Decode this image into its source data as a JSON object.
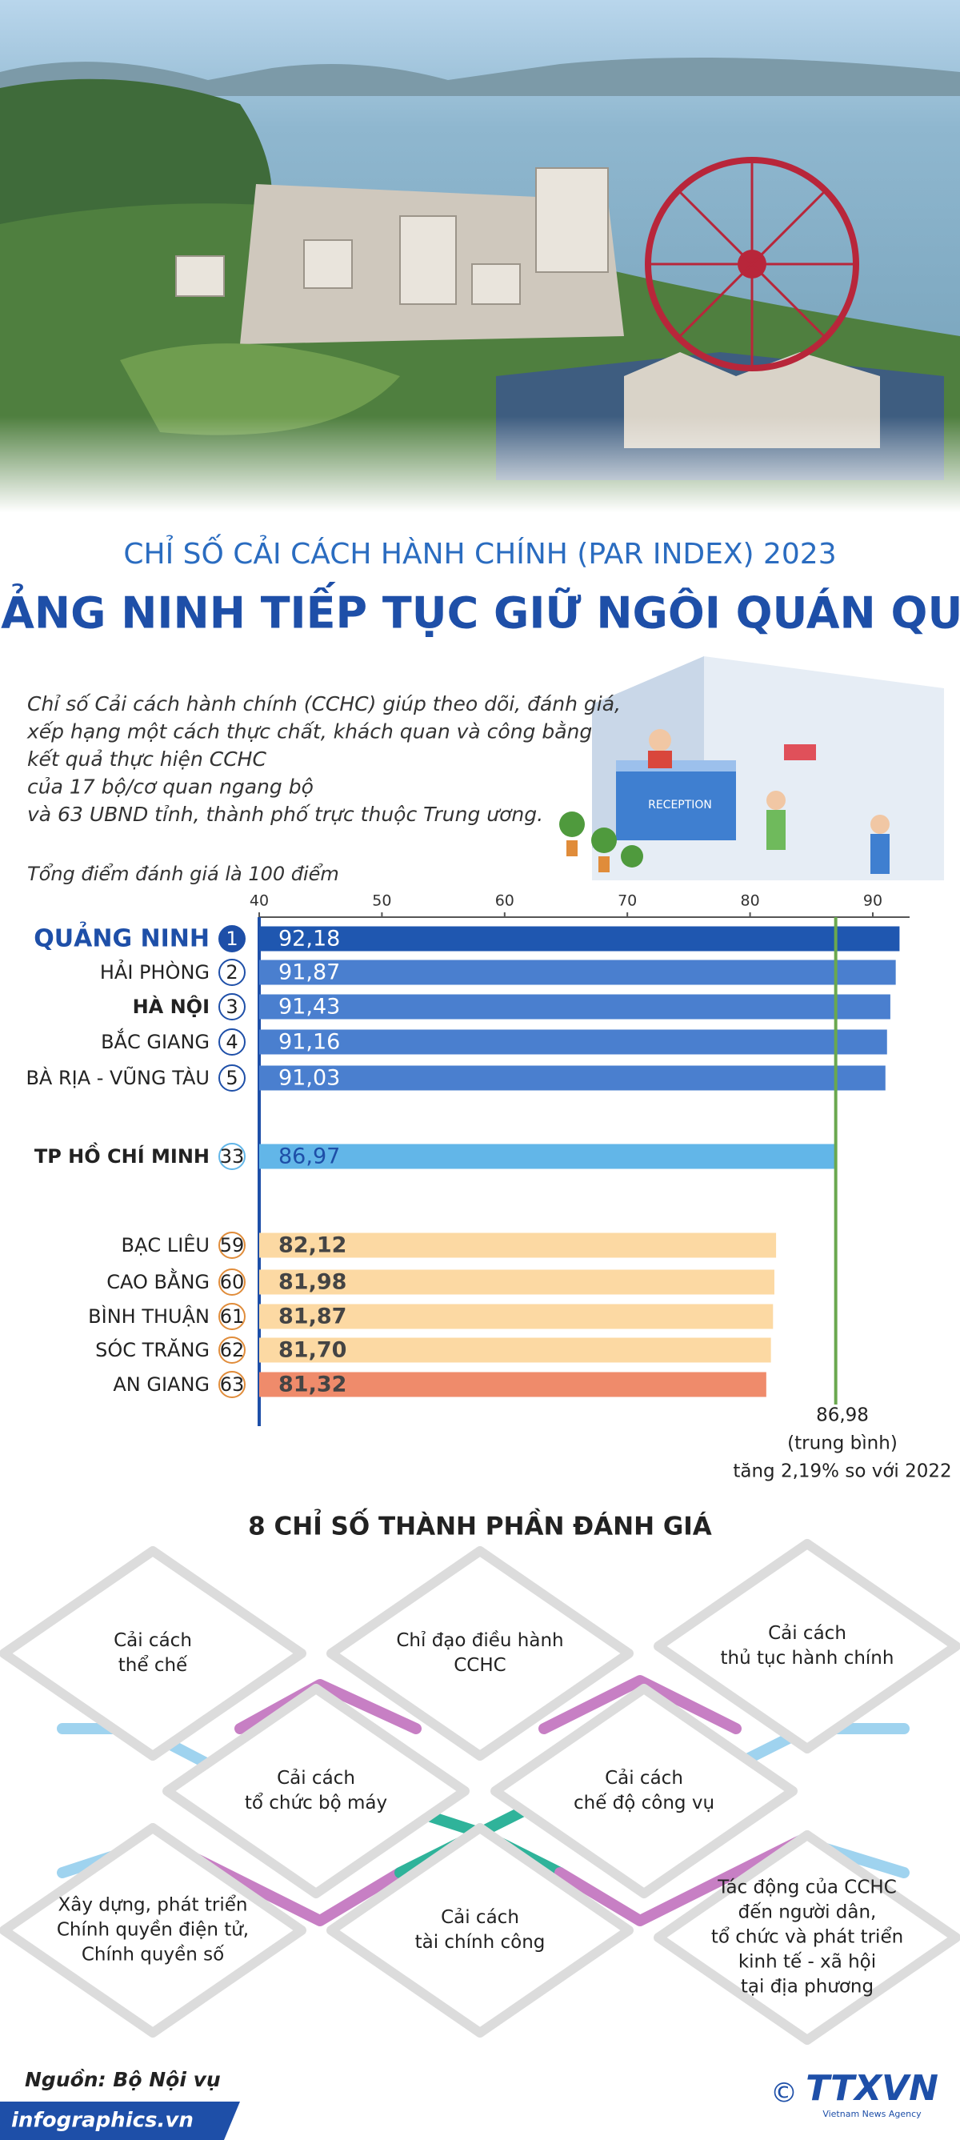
{
  "header": {
    "title": "CHỈ SỐ CẢI CÁCH HÀNH CHÍNH (PAR INDEX) 2023",
    "subtitle": "QUẢNG NINH TIẾP TỤC GIỮ NGÔI QUÁN QUÂN"
  },
  "description": {
    "lines": [
      "Chỉ số Cải cách hành chính (CCHC) giúp theo dõi, đánh giá,",
      "xếp hạng một cách thực chất, khách quan và công bằng",
      "kết quả thực hiện CCHC",
      "của 17 bộ/cơ quan ngang bộ",
      "và 63 UBND tỉnh, thành phố trực thuộc Trung ương."
    ],
    "note": "Tổng điểm đánh giá là 100 điểm"
  },
  "illustration": {
    "sign": "RECEPTION"
  },
  "chart_data": {
    "type": "bar",
    "orientation": "horizontal",
    "categories": [
      "QUẢNG NINH",
      "HẢI PHÒNG",
      "HÀ NỘI",
      "BẮC GIANG",
      "BÀ RỊA - VŨNG TÀU",
      "TP HỒ CHÍ MINH",
      "BẠC LIÊU",
      "CAO BẰNG",
      "BÌNH THUẬN",
      "SÓC TRĂNG",
      "AN GIANG"
    ],
    "ranks": [
      1,
      2,
      3,
      4,
      5,
      33,
      59,
      60,
      61,
      62,
      63
    ],
    "values": [
      92.18,
      91.87,
      91.43,
      91.16,
      91.03,
      86.97,
      82.12,
      81.98,
      81.87,
      81.7,
      81.32
    ],
    "value_labels": [
      "92,18",
      "91,87",
      "91,43",
      "91,16",
      "91,03",
      "86,97",
      "82,12",
      "81,98",
      "81,87",
      "81,70",
      "81,32"
    ],
    "colors": [
      "#1f57b0",
      "#4a7fcf",
      "#4a7fcf",
      "#4a7fcf",
      "#4a7fcf",
      "#62b6e8",
      "#fcd9a3",
      "#fcd9a3",
      "#fcd9a3",
      "#fcd9a3",
      "#ef8b6b"
    ],
    "xlim": [
      40,
      93
    ],
    "xticks": [
      40,
      50,
      60,
      70,
      80,
      90
    ],
    "average": {
      "value": 86.98,
      "label": "86,98",
      "note": "(trung bình)",
      "change": "tăng 2,19% so với 2022",
      "color": "#6aa84f"
    }
  },
  "components": {
    "title": "8 CHỈ SỐ THÀNH PHẦN ĐÁNH GIÁ",
    "items": [
      [
        "Cải cách",
        "thể chế"
      ],
      [
        "Chỉ đạo điều hành",
        "CCHC"
      ],
      [
        "Cải cách",
        "thủ tục hành chính"
      ],
      [
        "Cải cách",
        "tổ chức bộ máy"
      ],
      [
        "Cải cách",
        "chế độ công vụ"
      ],
      [
        "Xây dựng, phát triển",
        "Chính quyền điện tử,",
        "Chính quyền số"
      ],
      [
        "Cải cách",
        "tài chính công"
      ],
      [
        "Tác động của CCHC",
        "đến người dân,",
        "tổ chức và phát triển",
        "kinh tế - xã hội",
        "tại địa phương"
      ]
    ]
  },
  "footer": {
    "source": "Nguồn: Bộ Nội vụ",
    "site": "infographics.vn",
    "copyright": "©",
    "logo": "TTXVN",
    "logo_sub": "Vietnam News Agency"
  }
}
